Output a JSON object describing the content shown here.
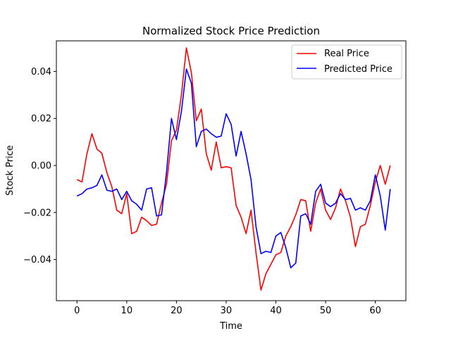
{
  "chart_data": {
    "type": "line",
    "title": "Normalized Stock Price Prediction",
    "xlabel": "Time",
    "ylabel": "Stock Price",
    "xlim": [
      -4.15,
      66.15
    ],
    "ylim": [
      -0.0575,
      0.053
    ],
    "xticks": [
      0,
      10,
      20,
      30,
      40,
      50,
      60
    ],
    "yticks": [
      -0.04,
      -0.02,
      0.0,
      0.02,
      0.04
    ],
    "ytick_labels": [
      "−0.04",
      "−0.02",
      "0.00",
      "0.02",
      "0.04"
    ],
    "grid": false,
    "legend_position": "top-right",
    "series": [
      {
        "name": "Real Price",
        "color": "#ff0000",
        "values": [
          -0.006,
          -0.007,
          0.005,
          0.0135,
          0.007,
          0.0052,
          -0.003,
          -0.009,
          -0.019,
          -0.0205,
          -0.012,
          -0.029,
          -0.028,
          -0.022,
          -0.0235,
          -0.0255,
          -0.025,
          -0.016,
          -0.008,
          0.0105,
          0.015,
          0.03,
          0.05,
          0.0395,
          0.019,
          0.024,
          0.005,
          -0.002,
          0.01,
          -0.001,
          -0.0005,
          -0.001,
          -0.017,
          -0.022,
          -0.029,
          -0.019,
          -0.037,
          -0.053,
          -0.046,
          -0.042,
          -0.038,
          -0.037,
          -0.03,
          -0.026,
          -0.021,
          -0.0145,
          -0.015,
          -0.028,
          -0.016,
          -0.01,
          -0.019,
          -0.023,
          -0.018,
          -0.01,
          -0.015,
          -0.022,
          -0.0345,
          -0.026,
          -0.025,
          -0.017,
          -0.007,
          0.0,
          -0.008,
          0.0
        ]
      },
      {
        "name": "Predicted Price",
        "color": "#0000ff",
        "values": [
          -0.013,
          -0.012,
          -0.01,
          -0.0095,
          -0.0085,
          -0.004,
          -0.0105,
          -0.011,
          -0.01,
          -0.0145,
          -0.011,
          -0.015,
          -0.0165,
          -0.019,
          -0.01,
          -0.0095,
          -0.0215,
          -0.021,
          -0.003,
          0.02,
          0.011,
          0.023,
          0.041,
          0.035,
          0.008,
          0.0145,
          0.0155,
          0.0135,
          0.012,
          0.0125,
          0.022,
          0.0175,
          0.004,
          0.0145,
          0.005,
          -0.006,
          -0.026,
          -0.0375,
          -0.0365,
          -0.037,
          -0.03,
          -0.0285,
          -0.035,
          -0.0435,
          -0.0415,
          -0.0215,
          -0.0205,
          -0.025,
          -0.011,
          -0.008,
          -0.016,
          -0.0175,
          -0.016,
          -0.012,
          -0.0145,
          -0.014,
          -0.019,
          -0.018,
          -0.019,
          -0.015,
          -0.004,
          -0.013,
          -0.0275,
          -0.01
        ]
      }
    ]
  }
}
